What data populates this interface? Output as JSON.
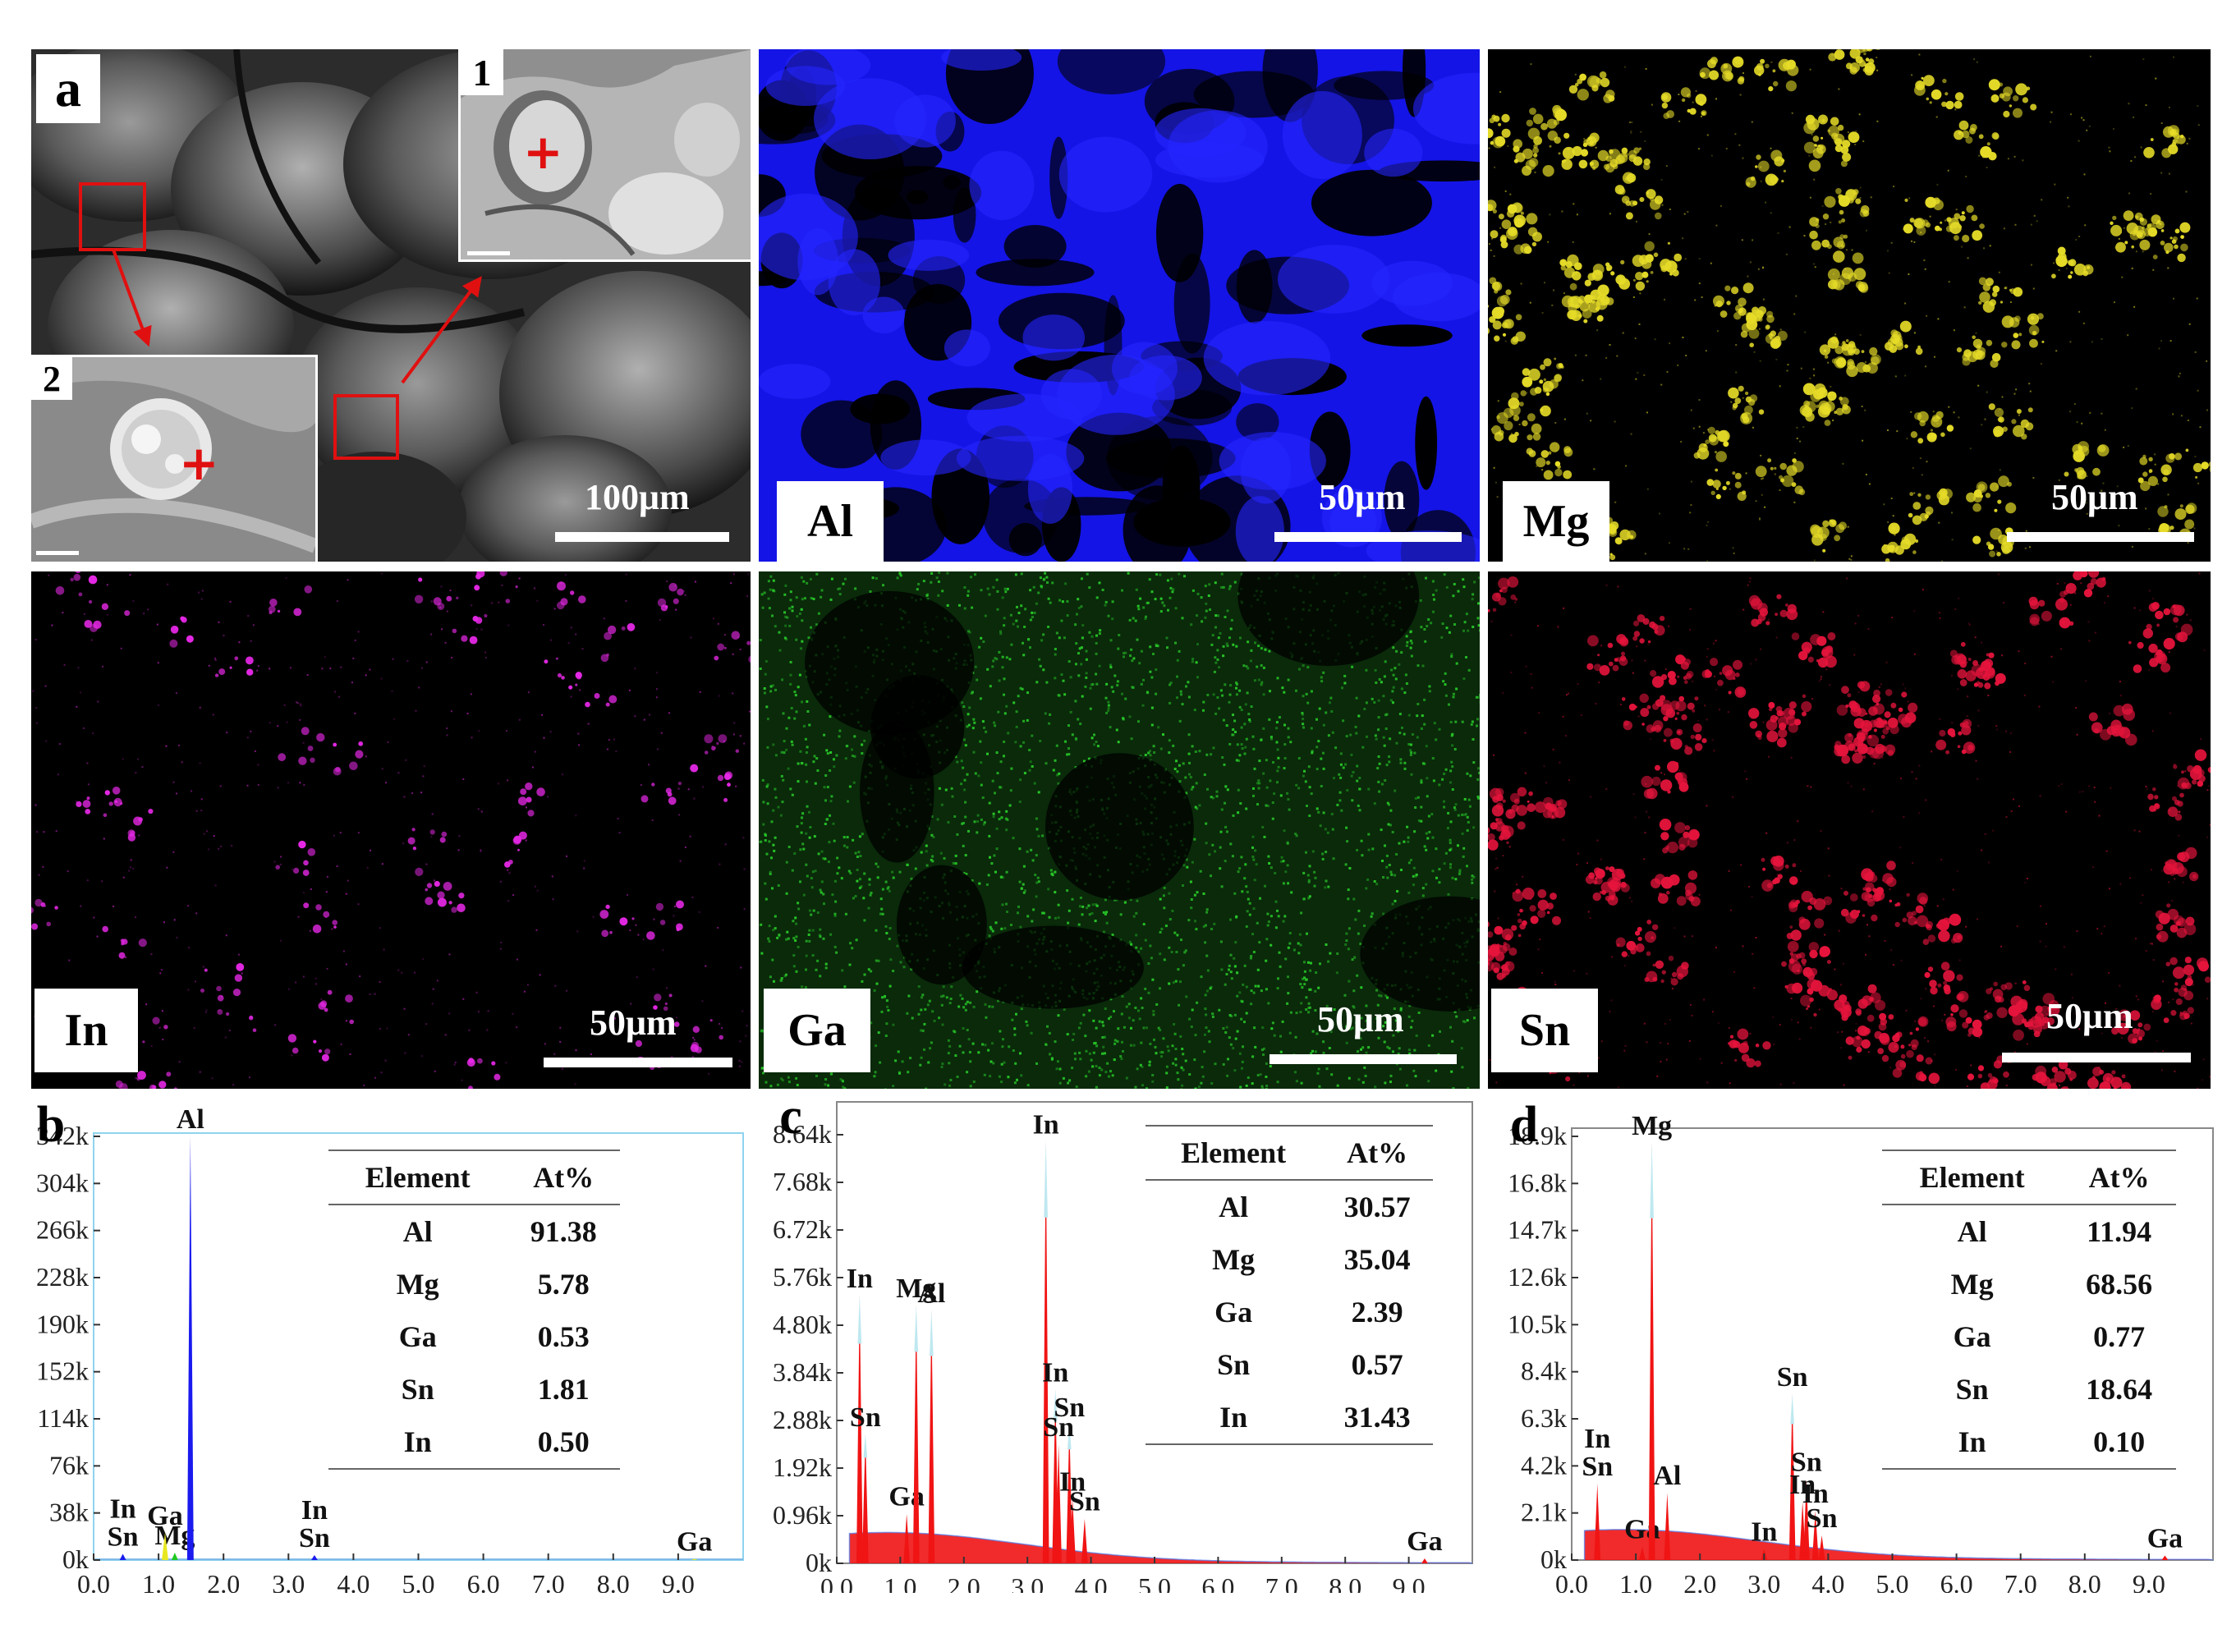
{
  "panel_a": {
    "letter": "a",
    "inset_1_label": "1",
    "inset_2_label": "2",
    "scale": "100μm"
  },
  "maps": [
    {
      "element": "Al",
      "scale": "50μm",
      "color": "#1414e6"
    },
    {
      "element": "Mg",
      "scale": "50μm",
      "color": "#e6dc28"
    },
    {
      "element": "In",
      "scale": "50μm",
      "color": "#e628e6"
    },
    {
      "element": "Ga",
      "scale": "50μm",
      "color": "#28c828"
    },
    {
      "element": "Sn",
      "scale": "50μm",
      "color": "#e6143c"
    }
  ],
  "chart_data": [
    {
      "type": "area",
      "panel": "b",
      "x_ticks": [
        "0.0",
        "1.0",
        "2.0",
        "3.0",
        "4.0",
        "5.0",
        "6.0",
        "7.0",
        "8.0",
        "9.0"
      ],
      "y_ticks": [
        "0k",
        "38k",
        "76k",
        "114k",
        "152k",
        "190k",
        "228k",
        "266k",
        "304k",
        "342k"
      ],
      "xlim": [
        0,
        10
      ],
      "ylim": [
        0,
        342
      ],
      "peaks": [
        {
          "x": 0.45,
          "y": 5,
          "label": "In\nSn"
        },
        {
          "x": 1.25,
          "y": 6,
          "label": "Mg"
        },
        {
          "x": 1.1,
          "y": 22,
          "label": "Ga"
        },
        {
          "x": 1.49,
          "y": 342,
          "label": "Al"
        },
        {
          "x": 3.4,
          "y": 4,
          "label": "In\nSn"
        },
        {
          "x": 9.25,
          "y": 1,
          "label": "Ga"
        }
      ],
      "table": {
        "headers": [
          "Element",
          "At%"
        ],
        "rows": [
          [
            "Al",
            "91.38"
          ],
          [
            "Mg",
            "5.78"
          ],
          [
            "Ga",
            "0.53"
          ],
          [
            "Sn",
            "1.81"
          ],
          [
            "In",
            "0.50"
          ]
        ]
      }
    },
    {
      "type": "area",
      "panel": "c",
      "x_ticks": [
        "0.0",
        "1.0",
        "2.0",
        "3.0",
        "4.0",
        "5.0",
        "6.0",
        "7.0",
        "8.0",
        "9.0"
      ],
      "y_ticks": [
        "0k",
        "0.96k",
        "1.92k",
        "2.88k",
        "3.84k",
        "4.80k",
        "5.76k",
        "6.72k",
        "7.68k",
        "8.64k"
      ],
      "xlim": [
        0,
        10
      ],
      "ylim": [
        0,
        8.64
      ],
      "peaks": [
        {
          "x": 0.36,
          "y": 5.4,
          "label": "In"
        },
        {
          "x": 0.45,
          "y": 2.6,
          "label": "Sn"
        },
        {
          "x": 1.1,
          "y": 1.0,
          "label": "Ga"
        },
        {
          "x": 1.25,
          "y": 5.2,
          "label": "Mg"
        },
        {
          "x": 1.49,
          "y": 5.1,
          "label": "Al"
        },
        {
          "x": 3.29,
          "y": 8.5,
          "label": "In"
        },
        {
          "x": 3.44,
          "y": 3.5,
          "label": "In"
        },
        {
          "x": 3.66,
          "y": 2.8,
          "label": "Sn"
        },
        {
          "x": 3.49,
          "y": 2.4,
          "label": "Sn"
        },
        {
          "x": 3.71,
          "y": 1.3,
          "label": "In"
        },
        {
          "x": 3.9,
          "y": 0.9,
          "label": "Sn"
        },
        {
          "x": 9.25,
          "y": 0.1,
          "label": "Ga"
        }
      ],
      "table": {
        "headers": [
          "Element",
          "At%"
        ],
        "rows": [
          [
            "Al",
            "30.57"
          ],
          [
            "Mg",
            "35.04"
          ],
          [
            "Ga",
            "2.39"
          ],
          [
            "Sn",
            "0.57"
          ],
          [
            "In",
            "31.43"
          ]
        ]
      }
    },
    {
      "type": "area",
      "panel": "d",
      "x_ticks": [
        "0.0",
        "1.0",
        "2.0",
        "3.0",
        "4.0",
        "5.0",
        "6.0",
        "7.0",
        "8.0",
        "9.0"
      ],
      "y_ticks": [
        "0k",
        "2.1k",
        "4.2k",
        "6.3k",
        "8.4k",
        "10.5k",
        "12.6k",
        "14.7k",
        "16.8k",
        "18.9k"
      ],
      "xlim": [
        0,
        10
      ],
      "ylim": [
        0,
        18.9
      ],
      "peaks": [
        {
          "x": 0.4,
          "y": 3.4,
          "label": "In\nSn"
        },
        {
          "x": 1.1,
          "y": 0.6,
          "label": "Ga"
        },
        {
          "x": 1.25,
          "y": 18.6,
          "label": "Mg"
        },
        {
          "x": 1.49,
          "y": 3.0,
          "label": "Al"
        },
        {
          "x": 3.0,
          "y": 0.5,
          "label": "In"
        },
        {
          "x": 3.44,
          "y": 7.4,
          "label": "Sn"
        },
        {
          "x": 3.66,
          "y": 3.6,
          "label": "Sn"
        },
        {
          "x": 3.6,
          "y": 2.6,
          "label": "In"
        },
        {
          "x": 3.8,
          "y": 2.2,
          "label": "In"
        },
        {
          "x": 3.9,
          "y": 1.1,
          "label": "Sn"
        },
        {
          "x": 9.25,
          "y": 0.2,
          "label": "Ga"
        }
      ],
      "table": {
        "headers": [
          "Element",
          "At%"
        ],
        "rows": [
          [
            "Al",
            "11.94"
          ],
          [
            "Mg",
            "68.56"
          ],
          [
            "Ga",
            "0.77"
          ],
          [
            "Sn",
            "18.64"
          ],
          [
            "In",
            "0.10"
          ]
        ]
      }
    }
  ]
}
